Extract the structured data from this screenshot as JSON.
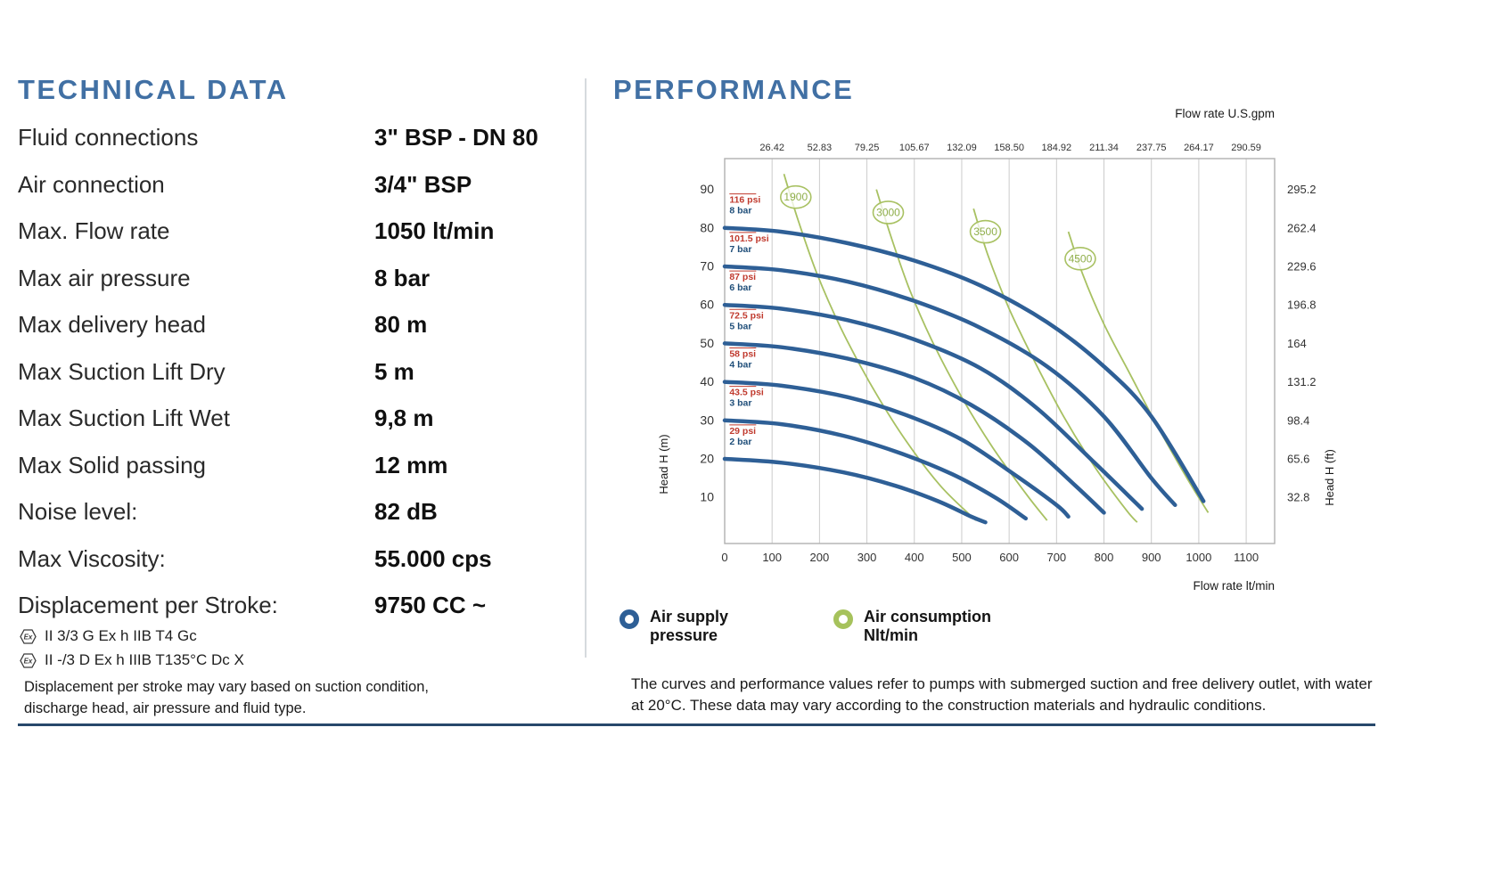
{
  "technical": {
    "title": "TECHNICAL DATA",
    "rows": [
      {
        "label": "Fluid connections",
        "value": "3\" BSP - DN 80"
      },
      {
        "label": "Air connection",
        "value": "3/4\" BSP"
      },
      {
        "label": "Max. Flow rate",
        "value": "1050 lt/min"
      },
      {
        "label": "Max air pressure",
        "value": "8 bar"
      },
      {
        "label": "Max delivery head",
        "value": "80 m"
      },
      {
        "label": "Max Suction Lift Dry",
        "value": "5 m"
      },
      {
        "label": "Max Suction Lift Wet",
        "value": "9,8 m"
      },
      {
        "label": "Max Solid passing",
        "value": "12 mm"
      },
      {
        "label": "Noise level:",
        "value": "82 dB"
      },
      {
        "label": "Max Viscosity:",
        "value": "55.000 cps"
      },
      {
        "label": "Displacement per Stroke:",
        "value": "9750 CC ~"
      }
    ],
    "ex_icon_label": "Ex",
    "atex": [
      {
        "text": "II 3/3 G Ex h IIB T4 Gc"
      },
      {
        "text": "II -/3 D Ex h IIIB T135°C Dc X"
      }
    ],
    "note": "Displacement per stroke may vary based on suction condition, discharge head, air pressure and fluid type."
  },
  "performance": {
    "title": "PERFORMANCE",
    "legend": {
      "supply": {
        "line1": "Air supply",
        "line2": "pressure",
        "color": "#2e5f96"
      },
      "consumption": {
        "line1": "Air consumption",
        "line2": "Nlt/min",
        "color": "#a6c25c"
      }
    },
    "note": "The curves and performance values refer to pumps with submerged suction and free delivery outlet, with water at 20°C. These data may vary according to the construction materials and hydraulic conditions."
  },
  "chart_data": {
    "type": "line",
    "top_axis_label": "Flow rate U.S.gpm",
    "top_ticks": [
      "26.42",
      "52.83",
      "79.25",
      "105.67",
      "132.09",
      "158.50",
      "184.92",
      "211.34",
      "237.75",
      "264.17",
      "290.59"
    ],
    "bottom_axis_label": "Flow rate  lt/min",
    "bottom_ticks": [
      0,
      100,
      200,
      300,
      400,
      500,
      600,
      700,
      800,
      900,
      1000,
      1100
    ],
    "left_axis_label": "Head H (m)",
    "left_ticks": [
      10,
      20,
      30,
      40,
      50,
      60,
      70,
      80,
      90
    ],
    "right_axis_label": "Head H (ft)",
    "right_ticks": [
      "295.2",
      "262.4",
      "229.6",
      "196.8",
      "164",
      "131.2",
      "98.4",
      "65.6",
      "32.8"
    ],
    "xlim": [
      0,
      1160
    ],
    "ylim": [
      -2,
      98
    ],
    "grid": true,
    "colors": {
      "pressure": "#2e5f96",
      "consumption": "#a8c162",
      "consumption_text": "#8fae4a",
      "psi_text": "#c03a2e",
      "bar_text": "#1f4e79",
      "grid": "#cccccc",
      "border": "#b0b0b0",
      "text": "#333333"
    },
    "pressure_curves": [
      {
        "psi": "116 psi",
        "bar": "8 bar",
        "label_y": 86.5,
        "points": [
          [
            0,
            80
          ],
          [
            120,
            79
          ],
          [
            260,
            76
          ],
          [
            400,
            71.5
          ],
          [
            540,
            65
          ],
          [
            680,
            55.5
          ],
          [
            800,
            44
          ],
          [
            900,
            31
          ],
          [
            1010,
            9
          ]
        ]
      },
      {
        "psi": "101.5 psi",
        "bar": "7 bar",
        "label_y": 76.5,
        "points": [
          [
            0,
            70
          ],
          [
            120,
            69
          ],
          [
            260,
            66
          ],
          [
            400,
            61
          ],
          [
            540,
            54
          ],
          [
            680,
            44
          ],
          [
            800,
            31
          ],
          [
            900,
            15
          ],
          [
            950,
            8
          ]
        ]
      },
      {
        "psi": "87 psi",
        "bar": "6 bar",
        "label_y": 66.5,
        "points": [
          [
            0,
            60
          ],
          [
            120,
            59
          ],
          [
            260,
            56
          ],
          [
            400,
            51
          ],
          [
            540,
            43.5
          ],
          [
            660,
            33
          ],
          [
            780,
            19
          ],
          [
            880,
            7
          ]
        ]
      },
      {
        "psi": "72.5 psi",
        "bar": "5 bar",
        "label_y": 56.5,
        "points": [
          [
            0,
            50
          ],
          [
            120,
            49
          ],
          [
            260,
            46
          ],
          [
            400,
            41
          ],
          [
            520,
            34
          ],
          [
            640,
            24
          ],
          [
            740,
            13
          ],
          [
            800,
            6
          ]
        ]
      },
      {
        "psi": "58 psi",
        "bar": "4 bar",
        "label_y": 46.5,
        "points": [
          [
            0,
            40
          ],
          [
            120,
            39
          ],
          [
            260,
            36
          ],
          [
            380,
            31.5
          ],
          [
            500,
            25
          ],
          [
            610,
            16
          ],
          [
            700,
            8
          ],
          [
            725,
            5
          ]
        ]
      },
      {
        "psi": "43.5 psi",
        "bar": "3 bar",
        "label_y": 36.5,
        "points": [
          [
            0,
            30
          ],
          [
            120,
            29
          ],
          [
            250,
            26
          ],
          [
            370,
            21.5
          ],
          [
            480,
            16
          ],
          [
            570,
            10
          ],
          [
            635,
            4.5
          ]
        ]
      },
      {
        "psi": "29 psi",
        "bar": "2 bar",
        "label_y": 26.5,
        "points": [
          [
            0,
            20
          ],
          [
            120,
            19
          ],
          [
            250,
            16.5
          ],
          [
            360,
            13
          ],
          [
            450,
            9
          ],
          [
            520,
            5
          ],
          [
            550,
            3.5
          ]
        ]
      }
    ],
    "consumption_curves": [
      {
        "label": "1900",
        "circle": [
          150,
          88
        ],
        "points": [
          [
            125,
            94
          ],
          [
            155,
            82
          ],
          [
            195,
            68
          ],
          [
            245,
            54
          ],
          [
            305,
            40
          ],
          [
            375,
            26
          ],
          [
            455,
            13
          ],
          [
            530,
            4
          ]
        ]
      },
      {
        "label": "3000",
        "circle": [
          345,
          84
        ],
        "points": [
          [
            320,
            90
          ],
          [
            350,
            78
          ],
          [
            390,
            64
          ],
          [
            440,
            50
          ],
          [
            500,
            36
          ],
          [
            565,
            23
          ],
          [
            635,
            11
          ],
          [
            680,
            4
          ]
        ]
      },
      {
        "label": "3500",
        "circle": [
          550,
          79
        ],
        "points": [
          [
            525,
            85
          ],
          [
            555,
            73
          ],
          [
            600,
            59
          ],
          [
            655,
            45
          ],
          [
            715,
            31
          ],
          [
            780,
            18
          ],
          [
            845,
            7
          ],
          [
            870,
            3.5
          ]
        ]
      },
      {
        "label": "4500",
        "circle": [
          750,
          72
        ],
        "points": [
          [
            725,
            79
          ],
          [
            755,
            68
          ],
          [
            800,
            55
          ],
          [
            855,
            42
          ],
          [
            915,
            28
          ],
          [
            975,
            15
          ],
          [
            1020,
            6
          ]
        ]
      }
    ]
  }
}
